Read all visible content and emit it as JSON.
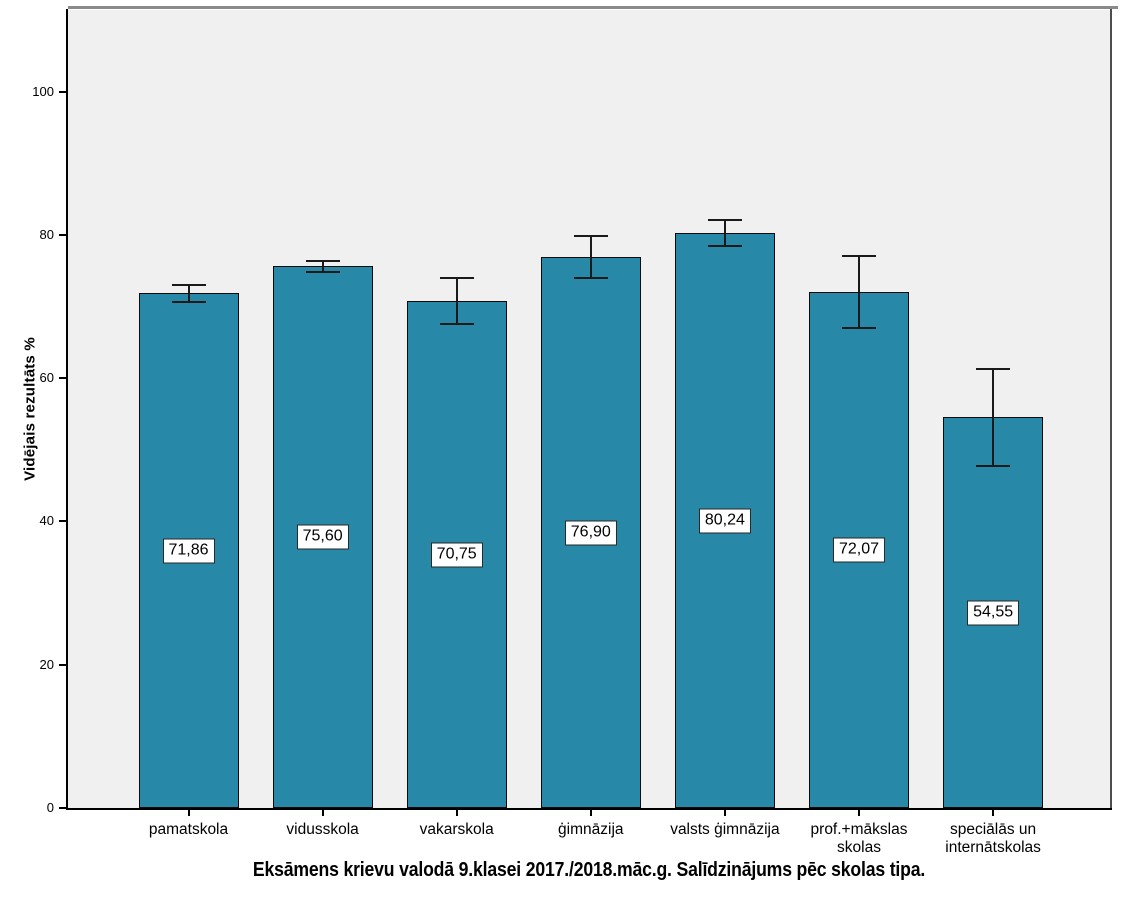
{
  "chart_data": {
    "type": "bar",
    "title": "Eksāmens krievu valodā 9.klasei 2017./2018.māc.g. Salīdzinājums pēc skolas tipa.",
    "ylabel": "Vidējais rezultāts %",
    "xlabel": "",
    "categories": [
      "pamatskola",
      "vidusskola",
      "vakarskola",
      "ģimnāzija",
      "valsts ģimnāzija",
      "prof.+mākslas skolas",
      "speciālās un internātskolas"
    ],
    "values": [
      71.86,
      75.6,
      70.75,
      76.9,
      80.24,
      72.07,
      54.55
    ],
    "value_labels": [
      "71,86",
      "75,60",
      "70,75",
      "76,90",
      "80,24",
      "72,07",
      "54,55"
    ],
    "error_plus_minus": [
      1.2,
      0.8,
      3.2,
      2.9,
      1.8,
      5.0,
      6.8
    ],
    "yticks": [
      0,
      20,
      40,
      60,
      80,
      100
    ],
    "ytick_labels": [
      "0",
      "20",
      "40",
      "60",
      "80",
      "100"
    ],
    "ylim": [
      0,
      111.4
    ],
    "grid": false,
    "legend": "none",
    "bar_color": "#2789a7",
    "bar_border_color": "#0a0a0a",
    "error_color": "#1a1a1a",
    "plot_background": "#f0f0f0",
    "page_background": "#ffffff",
    "value_label_background": "#ffffff"
  }
}
